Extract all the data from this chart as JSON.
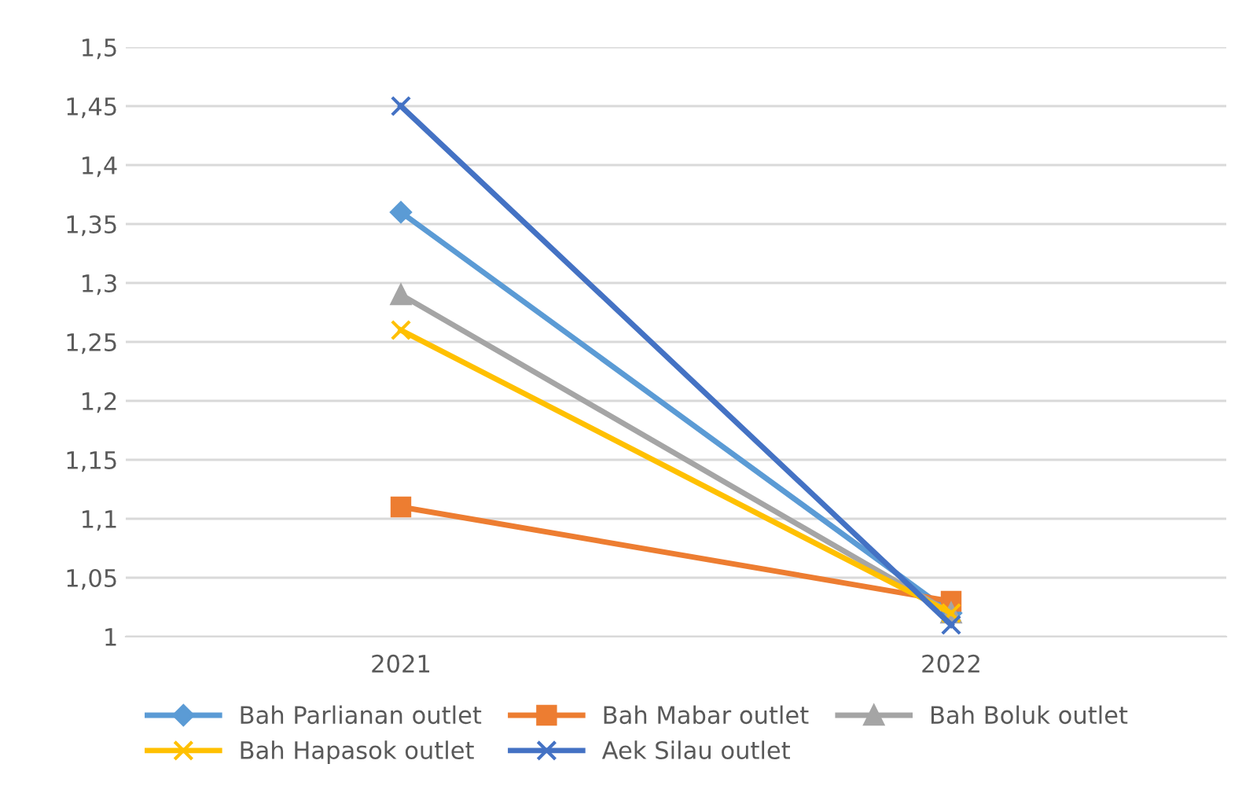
{
  "chart_data": {
    "type": "line",
    "categories": [
      "2021",
      "2022"
    ],
    "series": [
      {
        "name": "Bah Parlianan outlet",
        "color": "#5b9bd5",
        "marker": "diamond",
        "values": [
          1.36,
          1.02
        ]
      },
      {
        "name": "Bah Mabar outlet",
        "color": "#ed7d31",
        "marker": "square",
        "values": [
          1.11,
          1.03
        ]
      },
      {
        "name": "Bah Boluk outlet",
        "color": "#a5a5a5",
        "marker": "triangle",
        "values": [
          1.29,
          1.02
        ]
      },
      {
        "name": "Bah Hapasok outlet",
        "color": "#ffc000",
        "marker": "cross",
        "values": [
          1.26,
          1.02
        ]
      },
      {
        "name": "Aek Silau outlet",
        "color": "#4472c4",
        "marker": "cross",
        "values": [
          1.45,
          1.01
        ]
      }
    ],
    "ylim": [
      1,
      1.5
    ],
    "yticks": [
      {
        "value": 1,
        "label": "1"
      },
      {
        "value": 1.05,
        "label": "1,05"
      },
      {
        "value": 1.1,
        "label": "1,1"
      },
      {
        "value": 1.15,
        "label": "1,15"
      },
      {
        "value": 1.2,
        "label": "1,2"
      },
      {
        "value": 1.25,
        "label": "1,25"
      },
      {
        "value": 1.3,
        "label": "1,3"
      },
      {
        "value": 1.35,
        "label": "1,35"
      },
      {
        "value": 1.4,
        "label": "1,4"
      },
      {
        "value": 1.45,
        "label": "1,45"
      },
      {
        "value": 1.5,
        "label": "1,5"
      }
    ],
    "grid": "y",
    "legend": "bottom",
    "line_style": "solid"
  }
}
